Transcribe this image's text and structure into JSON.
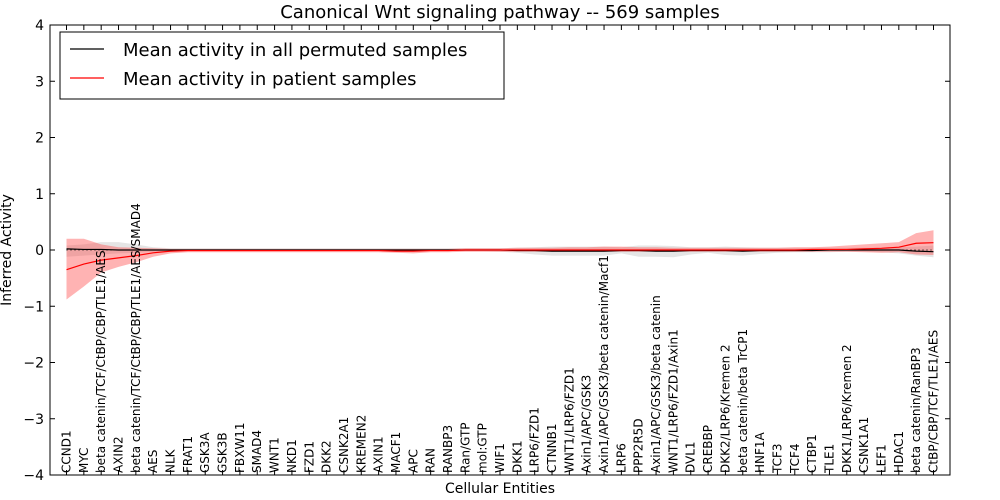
{
  "chart_data": {
    "type": "line",
    "title": "Canonical Wnt signaling pathway -- 569 samples",
    "xlabel": "Cellular Entities",
    "ylabel": "Inferred Activity",
    "ylim": [
      -4,
      4
    ],
    "yticks": [
      -4,
      -3,
      -2,
      -1,
      0,
      1,
      2,
      3,
      4
    ],
    "ytick_labels": [
      "−4",
      "−3",
      "−2",
      "−1",
      "0",
      "1",
      "2",
      "3",
      "4"
    ],
    "grid": false,
    "legend_position": "top-left",
    "categories": [
      "CCND1",
      "MYC",
      "beta catenin/TCF/CtBP/CBP/TLE1/AES",
      "AXIN2",
      "beta catenin/TCF/CtBP/CBP/TLE1/AES/SMAD4",
      "AES",
      "NLK",
      "FRAT1",
      "GSK3A",
      "GSK3B",
      "FBXW11",
      "SMAD4",
      "WNT1",
      "NKD1",
      "FZD1",
      "DKK2",
      "CSNK2A1",
      "KREMEN2",
      "AXIN1",
      "MACF1",
      "APC",
      "RAN",
      "RANBP3",
      "Ran/GTP",
      "mol:GTP",
      "WIF1",
      "DKK1",
      "LRP6/FZD1",
      "CTNNB1",
      "WNT1/LRP6/FZD1",
      "Axin1/APC/GSK3",
      "Axin1/APC/GSK3/beta catenin/Macf1",
      "LRP6",
      "PPP2R5D",
      "Axin1/APC/GSK3/beta catenin",
      "WNT1/LRP6/FZD1/Axin1",
      "DVL1",
      "CREBBP",
      "DKK2/LRP6/Kremen 2",
      "beta catenin/beta TrCP1",
      "HNF1A",
      "TCF3",
      "TCF4",
      "CTBP1",
      "TLE1",
      "DKK1/LRP6/Kremen 2",
      "CSNK1A1",
      "LEF1",
      "HDAC1",
      "beta catenin/RanBP3",
      "CtBP/CBP/TCF/TLE1/AES"
    ],
    "series": [
      {
        "name": "Mean activity in all permuted samples",
        "color": "#000000",
        "values": [
          0.02,
          0.01,
          0.01,
          0.0,
          0.0,
          0.0,
          0.0,
          0.0,
          0.0,
          0.0,
          0.0,
          0.0,
          0.0,
          0.0,
          0.0,
          0.0,
          0.0,
          0.0,
          0.0,
          0.0,
          0.0,
          0.0,
          0.0,
          0.0,
          0.0,
          0.0,
          -0.01,
          -0.01,
          -0.02,
          -0.02,
          -0.02,
          -0.02,
          -0.01,
          -0.01,
          -0.02,
          -0.02,
          -0.01,
          -0.01,
          -0.01,
          -0.02,
          -0.01,
          -0.01,
          -0.01,
          -0.01,
          0.0,
          0.0,
          0.0,
          0.0,
          0.0,
          -0.02,
          -0.03
        ],
        "band_low": [
          -0.12,
          -0.1,
          -0.08,
          -0.06,
          -0.05,
          -0.03,
          -0.02,
          -0.02,
          -0.02,
          -0.02,
          -0.02,
          -0.02,
          -0.02,
          -0.02,
          -0.02,
          -0.02,
          -0.02,
          -0.02,
          -0.02,
          -0.02,
          -0.02,
          -0.02,
          -0.02,
          -0.02,
          -0.02,
          -0.03,
          -0.05,
          -0.08,
          -0.1,
          -0.1,
          -0.1,
          -0.1,
          -0.06,
          -0.12,
          -0.12,
          -0.13,
          -0.08,
          -0.05,
          -0.09,
          -0.1,
          -0.07,
          -0.05,
          -0.04,
          -0.04,
          -0.04,
          -0.03,
          -0.03,
          -0.04,
          -0.06,
          -0.1,
          -0.13
        ],
        "band_high": [
          0.08,
          0.1,
          0.14,
          0.14,
          0.1,
          0.05,
          0.03,
          0.03,
          0.03,
          0.03,
          0.03,
          0.03,
          0.03,
          0.03,
          0.03,
          0.03,
          0.03,
          0.03,
          0.03,
          0.03,
          0.03,
          0.03,
          0.03,
          0.03,
          0.03,
          0.03,
          0.04,
          0.05,
          0.06,
          0.06,
          0.06,
          0.06,
          0.05,
          0.08,
          0.08,
          0.07,
          0.05,
          0.05,
          0.06,
          0.05,
          0.04,
          0.04,
          0.04,
          0.04,
          0.04,
          0.04,
          0.04,
          0.04,
          0.05,
          0.06,
          0.08
        ]
      },
      {
        "name": "Mean activity in patient samples",
        "color": "#ff0000",
        "values": [
          -0.35,
          -0.25,
          -0.18,
          -0.14,
          -0.1,
          -0.05,
          -0.02,
          -0.01,
          -0.01,
          -0.01,
          -0.01,
          -0.01,
          -0.01,
          -0.01,
          -0.01,
          -0.01,
          -0.01,
          -0.01,
          -0.01,
          -0.02,
          -0.02,
          -0.01,
          -0.01,
          0.0,
          0.0,
          0.0,
          0.0,
          0.0,
          0.0,
          0.0,
          0.0,
          0.0,
          0.0,
          0.0,
          0.0,
          0.0,
          0.0,
          0.0,
          0.0,
          0.0,
          0.0,
          0.0,
          0.0,
          0.01,
          0.01,
          0.01,
          0.02,
          0.03,
          0.05,
          0.12,
          0.13
        ],
        "band_low": [
          -0.88,
          -0.65,
          -0.4,
          -0.3,
          -0.22,
          -0.12,
          -0.06,
          -0.04,
          -0.04,
          -0.04,
          -0.04,
          -0.04,
          -0.04,
          -0.04,
          -0.04,
          -0.04,
          -0.04,
          -0.04,
          -0.04,
          -0.05,
          -0.06,
          -0.04,
          -0.04,
          -0.03,
          -0.03,
          -0.03,
          -0.03,
          -0.03,
          -0.03,
          -0.03,
          -0.03,
          -0.03,
          -0.03,
          -0.03,
          -0.03,
          -0.03,
          -0.03,
          -0.03,
          -0.03,
          -0.03,
          -0.03,
          -0.03,
          -0.03,
          -0.03,
          -0.03,
          -0.03,
          -0.04,
          -0.05,
          -0.04,
          -0.08,
          -0.09
        ],
        "band_high": [
          0.2,
          0.2,
          0.1,
          0.05,
          0.04,
          0.03,
          0.02,
          0.02,
          0.02,
          0.02,
          0.02,
          0.02,
          0.02,
          0.02,
          0.02,
          0.02,
          0.02,
          0.02,
          0.02,
          0.02,
          0.02,
          0.02,
          0.02,
          0.03,
          0.03,
          0.03,
          0.04,
          0.04,
          0.04,
          0.05,
          0.05,
          0.06,
          0.06,
          0.05,
          0.05,
          0.04,
          0.04,
          0.04,
          0.04,
          0.04,
          0.04,
          0.04,
          0.05,
          0.05,
          0.06,
          0.08,
          0.1,
          0.12,
          0.14,
          0.3,
          0.35
        ]
      }
    ]
  }
}
